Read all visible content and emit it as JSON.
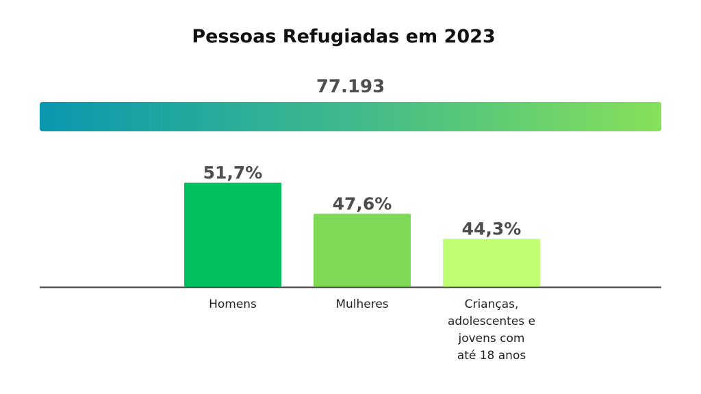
{
  "title": "Pessoas Refugiadas em 2023",
  "total": {
    "value_label": "77.193"
  },
  "colors": {
    "total_gradient": [
      "#0a98b0",
      "#86e05a"
    ],
    "bars": [
      "#00c060",
      "#7ed957",
      "#c1ff72"
    ],
    "value_labels": "#4d4d4d",
    "baseline": "#555555"
  },
  "chart_data": {
    "type": "bar",
    "title": "Pessoas Refugiadas em 2023",
    "categories": [
      "Homens",
      "Mulheres",
      "Crianças, adolescentes e jovens com até 18 anos"
    ],
    "category_lines": [
      [
        "Homens"
      ],
      [
        "Mulheres"
      ],
      [
        "Crianças,",
        "adolescentes e",
        "jovens com",
        "até 18 anos"
      ]
    ],
    "values": [
      51.7,
      47.6,
      44.3
    ],
    "value_labels": [
      "51,7%",
      "47,6%",
      "44,3%"
    ],
    "unit": "%",
    "baseline": 38,
    "xlabel": "",
    "ylabel": "",
    "grid": false,
    "legend": "none"
  }
}
